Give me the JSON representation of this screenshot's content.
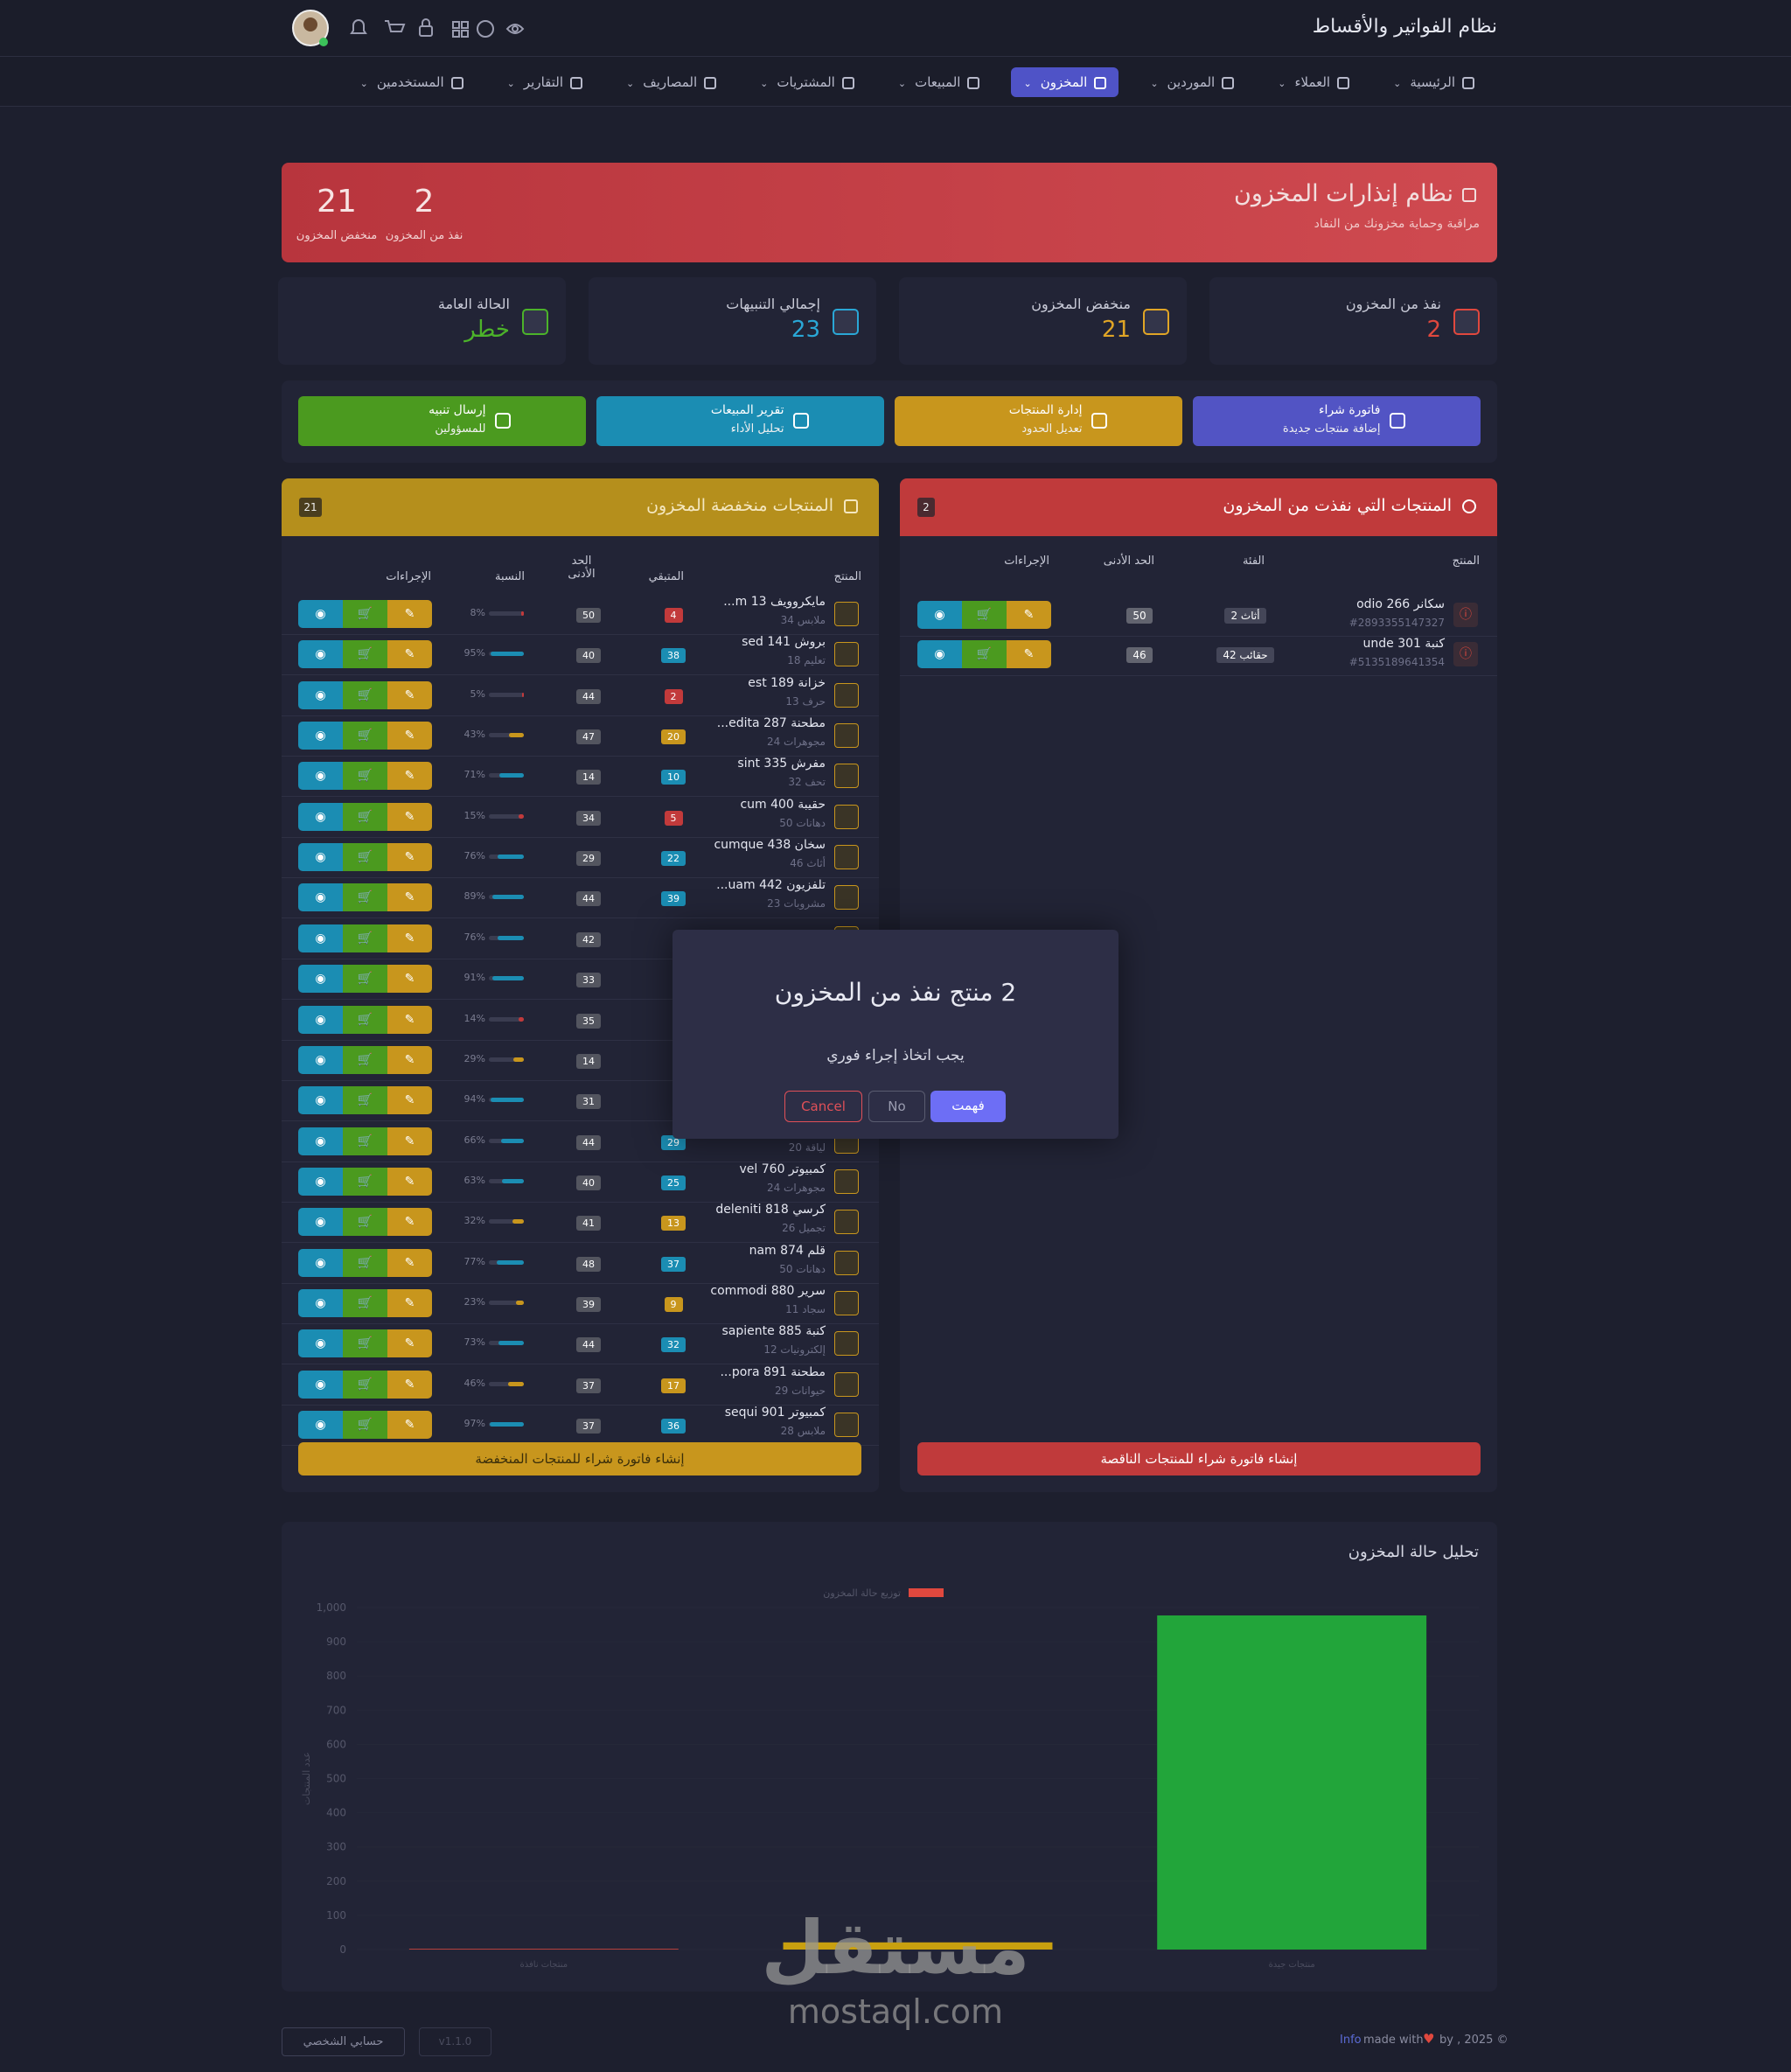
{
  "header": {
    "title": "نظام الفواتير والأقساط"
  },
  "nav": {
    "items": [
      "الرئيسية",
      "العملاء",
      "الموردين",
      "المخزون",
      "المبيعات",
      "المشتريات",
      "المصاريف",
      "التقارير",
      "المستخدمين"
    ],
    "active": 3
  },
  "banner": {
    "title": "نظام إنذارات المخزون",
    "subtitle": "مراقبة وحماية مخزونك من النفاد",
    "stats": [
      {
        "value": 2,
        "label": "نفذ من المخزون"
      },
      {
        "value": 21,
        "label": "منخفض المخزون"
      }
    ]
  },
  "cards": [
    {
      "label": "نفذ من المخزون",
      "value": 2,
      "color": "#e0483e"
    },
    {
      "label": "منخفض المخزون",
      "value": 21,
      "color": "#e0a526"
    },
    {
      "label": "إجمالي التنبيهات",
      "value": 23,
      "color": "#2aa7d6"
    },
    {
      "label": "الحالة العامة",
      "value": "خطر",
      "color": "#4cb32a"
    }
  ],
  "actions": [
    {
      "title": "فاتورة شراء",
      "subtitle": "إضافة منتجات جديدة",
      "color": "#5254c4"
    },
    {
      "title": "إدارة المنتجات",
      "subtitle": "تعديل الحدود",
      "color": "#c8961d"
    },
    {
      "title": "تقرير المبيعات",
      "subtitle": "تحليل الأداء",
      "color": "#1b8db3"
    },
    {
      "title": "إرسال تنبيه",
      "subtitle": "للمسؤولين",
      "color": "#4b9a1f"
    }
  ],
  "out_panel": {
    "title": "المنتجات التي نفذت من المخزون",
    "count": 2,
    "columns": [
      "المنتج",
      "الفئة",
      "الحد الأدنى",
      "الإجراءات"
    ],
    "rows": [
      {
        "name": "سكانر 266 odio",
        "code": "#2893355147327",
        "category": "أثاث 2",
        "min": 50
      },
      {
        "name": "كنبة 301 unde",
        "code": "#5135189641354",
        "category": "حقائب 42",
        "min": 46
      }
    ],
    "button": "إنشاء فاتورة شراء للمنتجات الناقصة"
  },
  "low_panel": {
    "title": "المنتجات منخفضة المخزون",
    "count": 21,
    "columns": [
      "المنتج",
      "المتبقي",
      "الحد الأدنى",
      "النسبة",
      "الإجراءات"
    ],
    "rows": [
      {
        "name": "مايكروويف 13 m...",
        "category": "ملابس 34",
        "remaining": 4,
        "min": 50,
        "ratio": {
          "value": 8,
          "label": "8%"
        }
      },
      {
        "name": "بروش 141 sed",
        "category": "تعليم 18",
        "remaining": 38,
        "min": 40,
        "ratio": {
          "value": 95,
          "label": "95%"
        }
      },
      {
        "name": "خزانة 189 est",
        "category": "حرف 13",
        "remaining": 2,
        "min": 44,
        "ratio": {
          "value": 5,
          "label": "5%"
        }
      },
      {
        "name": "مطحنة 287 edita...",
        "category": "مجوهرات 24",
        "remaining": 20,
        "min": 47,
        "ratio": {
          "value": 43,
          "label": "43%"
        }
      },
      {
        "name": "مفرش 335 sint",
        "category": "تحف 32",
        "remaining": 10,
        "min": 14,
        "ratio": {
          "value": 71,
          "label": "71%"
        }
      },
      {
        "name": "حقيبة 400 cum",
        "category": "دهانات 50",
        "remaining": 5,
        "min": 34,
        "ratio": {
          "value": 15,
          "label": "15%"
        }
      },
      {
        "name": "سخان 438 cumque",
        "category": "أثاث 46",
        "remaining": 22,
        "min": 29,
        "ratio": {
          "value": 76,
          "label": "76%"
        }
      },
      {
        "name": "تلفزيون 442 uam...",
        "category": "مشروبات 23",
        "remaining": 39,
        "min": 44,
        "ratio": {
          "value": 89,
          "label": "89%"
        }
      },
      {
        "min": 42,
        "ratio": {
          "value": 76,
          "label": "76%"
        }
      },
      {
        "min": 33,
        "ratio": {
          "value": 91,
          "label": "91%"
        }
      },
      {
        "min": 35,
        "ratio": {
          "value": 14,
          "label": "14%"
        }
      },
      {
        "min": 14,
        "ratio": {
          "value": 29,
          "label": "29%"
        }
      },
      {
        "min": 31,
        "ratio": {
          "value": 94,
          "label": "94%"
        }
      },
      {
        "category": "لياقة 20",
        "remaining": 29,
        "min": 44,
        "ratio": {
          "value": 66,
          "label": "66%"
        }
      },
      {
        "name": "كمبيوتر 760 vel",
        "category": "مجوهرات 24",
        "remaining": 25,
        "min": 40,
        "ratio": {
          "value": 63,
          "label": "63%"
        }
      },
      {
        "name": "كرسي 818 deleniti",
        "category": "تجميل 26",
        "remaining": 13,
        "min": 41,
        "ratio": {
          "value": 32,
          "label": "32%"
        }
      },
      {
        "name": "قلم 874 nam",
        "category": "دهانات 50",
        "remaining": 37,
        "min": 48,
        "ratio": {
          "value": 77,
          "label": "77%"
        }
      },
      {
        "name": "سرير 880 commodi",
        "category": "سجاد 11",
        "remaining": 9,
        "min": 39,
        "ratio": {
          "value": 23,
          "label": "23%"
        }
      },
      {
        "name": "كنبة 885 sapiente",
        "category": "إلكترونيات 12",
        "remaining": 32,
        "min": 44,
        "ratio": {
          "value": 73,
          "label": "73%"
        }
      },
      {
        "name": "مطحنة 891 pora...",
        "category": "حيوانات 29",
        "remaining": 17,
        "min": 37,
        "ratio": {
          "value": 46,
          "label": "46%"
        }
      },
      {
        "name": "كمبيوتر 901 sequi",
        "category": "ملابس 28",
        "remaining": 36,
        "min": 37,
        "ratio": {
          "value": 97,
          "label": "97%"
        }
      }
    ],
    "button": "إنشاء فاتورة شراء للمنتجات المنخفضة"
  },
  "modal": {
    "title": "2 منتج نفذ من المخزون",
    "text": "يجب اتخاذ إجراء فوري",
    "buttons": [
      "فهمت",
      "No",
      "Cancel"
    ]
  },
  "chart_data": {
    "type": "bar",
    "title": "تحليل حالة المخزون",
    "legend": "توزيع حالة المخزون",
    "legend_color": "#e0483e",
    "y_label": "عدد المنتجات",
    "categories": [
      "منتجات نافذة",
      null,
      "منتجات جيدة"
    ],
    "values": [
      2,
      21,
      977
    ],
    "colors": [
      "#e0483e",
      "#c9a00f",
      "#22a53a"
    ],
    "ylim": [
      0,
      1000
    ],
    "yticks": [
      0,
      100,
      200,
      300,
      400,
      500,
      600,
      700,
      800,
      900,
      {
        "value": 1000,
        "label": "1,000"
      }
    ],
    "grid": true
  },
  "watermark": {
    "arabic": "مستقل",
    "latin": "mostaql.com"
  },
  "footer": {
    "link": "Info",
    "made": "made with",
    "by": "by , 2025 ©",
    "account": "حسابي الشخصي",
    "version": "v1.1.0"
  }
}
